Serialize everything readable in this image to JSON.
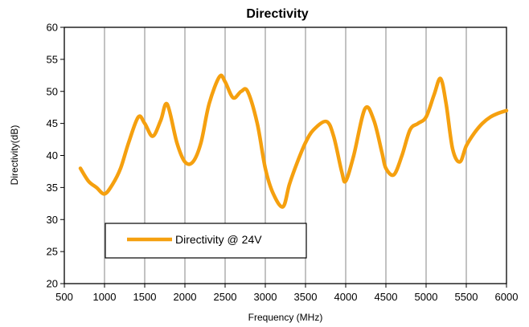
{
  "chart_data": {
    "type": "line",
    "title": "Directivity",
    "xlabel": "Frequency (MHz)",
    "ylabel": "Directivity(dB)",
    "xlim": [
      500,
      6000
    ],
    "ylim": [
      20,
      60
    ],
    "xticks": [
      500,
      1000,
      1500,
      2000,
      2500,
      3000,
      3500,
      4000,
      4500,
      5000,
      5500,
      6000
    ],
    "yticks": [
      20,
      25,
      30,
      35,
      40,
      45,
      50,
      55,
      60
    ],
    "grid": "vertical",
    "legend_position": "lower-left",
    "series": [
      {
        "name": "Directivity @ 24V",
        "color": "#F5A00F",
        "x": [
          700,
          800,
          900,
          1000,
          1100,
          1200,
          1300,
          1420,
          1500,
          1600,
          1700,
          1780,
          1900,
          2000,
          2100,
          2200,
          2300,
          2430,
          2500,
          2600,
          2700,
          2780,
          2900,
          3000,
          3100,
          3220,
          3300,
          3400,
          3500,
          3600,
          3760,
          3850,
          3950,
          4000,
          4100,
          4240,
          4350,
          4450,
          4500,
          4600,
          4700,
          4800,
          4900,
          5000,
          5100,
          5180,
          5250,
          5330,
          5420,
          5500,
          5600,
          5700,
          5800,
          5900,
          6000
        ],
        "values": [
          38,
          36,
          35,
          34,
          35.5,
          38,
          42,
          46,
          45,
          43,
          45.5,
          48,
          42,
          39,
          39,
          42,
          48,
          52.3,
          51.5,
          49,
          50,
          50,
          45,
          38,
          34,
          32,
          35.5,
          39,
          42,
          44,
          45.3,
          43,
          37.5,
          36,
          40,
          47.3,
          45.5,
          40.5,
          38,
          37,
          40,
          44,
          45,
          46,
          49.5,
          52,
          48,
          41,
          39,
          41.5,
          43.5,
          45,
          46,
          46.6,
          47
        ]
      }
    ]
  }
}
